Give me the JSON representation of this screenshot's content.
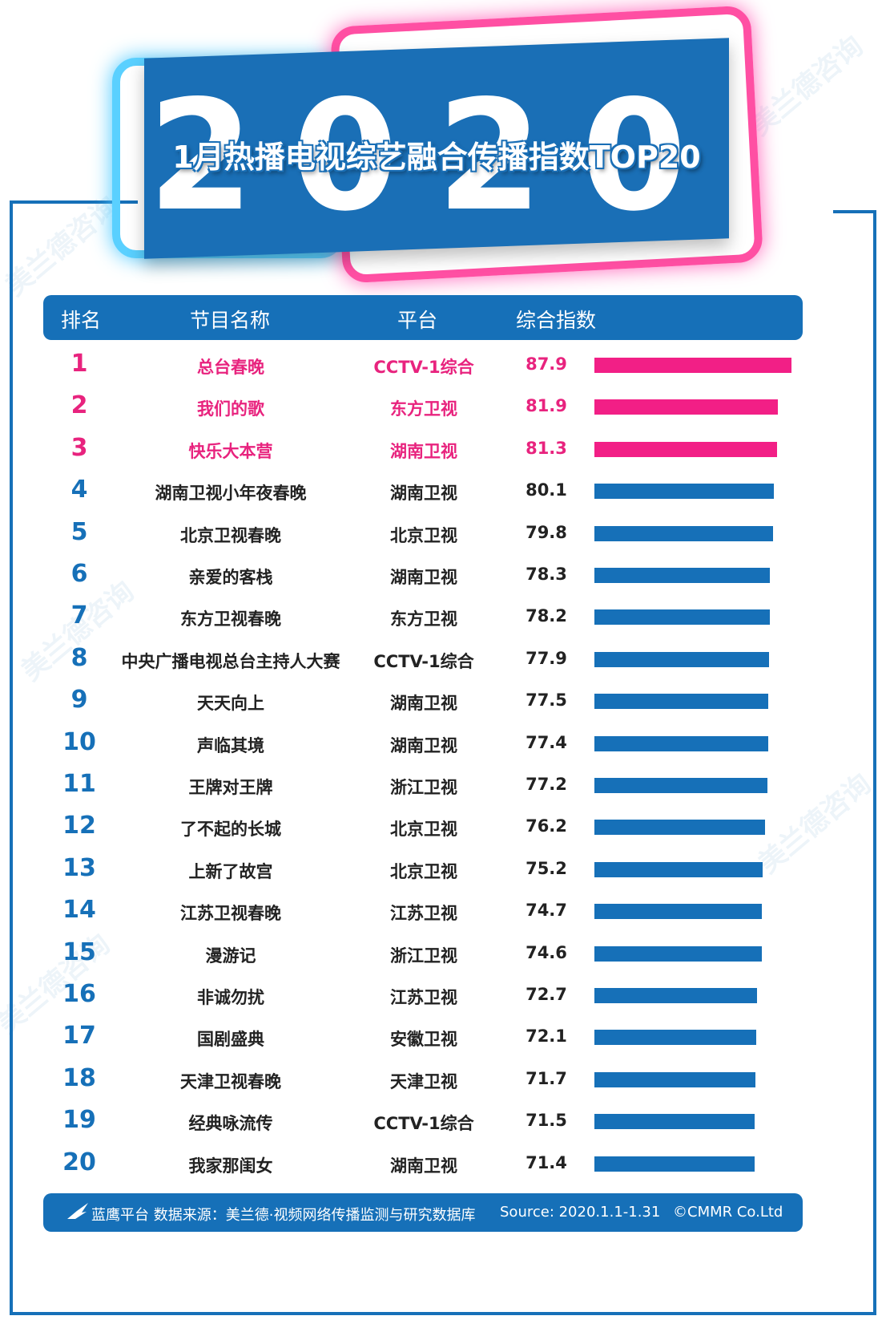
{
  "banner": {
    "year": "2020",
    "title": "1月热播电视综艺融合传播指数TOP20"
  },
  "header": {
    "rank": "排名",
    "name": "节目名称",
    "platform": "平台",
    "index": "综合指数"
  },
  "chart_data": {
    "type": "bar",
    "title": "1月热播电视综艺融合传播指数TOP20",
    "columns": [
      "排名",
      "节目名称",
      "平台",
      "综合指数"
    ],
    "xlim": [
      0,
      87.9
    ],
    "rows": [
      {
        "rank": "1",
        "name": "总台春晚",
        "platform": "CCTV-1综合",
        "value": 87.9
      },
      {
        "rank": "2",
        "name": "我们的歌",
        "platform": "东方卫视",
        "value": 81.9
      },
      {
        "rank": "3",
        "name": "快乐大本营",
        "platform": "湖南卫视",
        "value": 81.3
      },
      {
        "rank": "4",
        "name": "湖南卫视小年夜春晚",
        "platform": "湖南卫视",
        "value": 80.1
      },
      {
        "rank": "5",
        "name": "北京卫视春晚",
        "platform": "北京卫视",
        "value": 79.8
      },
      {
        "rank": "6",
        "name": "亲爱的客栈",
        "platform": "湖南卫视",
        "value": 78.3
      },
      {
        "rank": "7",
        "name": "东方卫视春晚",
        "platform": "东方卫视",
        "value": 78.2
      },
      {
        "rank": "8",
        "name": "中央广播电视总台主持人大赛",
        "platform": "CCTV-1综合",
        "value": 77.9
      },
      {
        "rank": "9",
        "name": "天天向上",
        "platform": "湖南卫视",
        "value": 77.5
      },
      {
        "rank": "10",
        "name": "声临其境",
        "platform": "湖南卫视",
        "value": 77.4
      },
      {
        "rank": "11",
        "name": "王牌对王牌",
        "platform": "浙江卫视",
        "value": 77.2
      },
      {
        "rank": "12",
        "name": "了不起的长城",
        "platform": "北京卫视",
        "value": 76.2
      },
      {
        "rank": "13",
        "name": "上新了故宫",
        "platform": "北京卫视",
        "value": 75.2
      },
      {
        "rank": "14",
        "name": "江苏卫视春晚",
        "platform": "江苏卫视",
        "value": 74.7
      },
      {
        "rank": "15",
        "name": "漫游记",
        "platform": "浙江卫视",
        "value": 74.6
      },
      {
        "rank": "16",
        "name": "非诚勿扰",
        "platform": "江苏卫视",
        "value": 72.7
      },
      {
        "rank": "17",
        "name": "国剧盛典",
        "platform": "安徽卫视",
        "value": 72.1
      },
      {
        "rank": "18",
        "name": "天津卫视春晚",
        "platform": "天津卫视",
        "value": 71.7
      },
      {
        "rank": "19",
        "name": "经典咏流传",
        "platform": "CCTV-1综合",
        "value": 71.5
      },
      {
        "rank": "20",
        "name": "我家那闺女",
        "platform": "湖南卫视",
        "value": 71.4
      }
    ],
    "highlight_top": 3,
    "colors": {
      "highlight": "#f21f86",
      "normal": "#1670b8"
    }
  },
  "footer": {
    "source_cn": "蓝鹰平台 数据来源：美兰德·视频网络传播监测与研究数据库",
    "source_en": "Source:  2020.1.1-1.31",
    "copyright": "©CMMR Co.Ltd"
  },
  "watermark": "美兰德咨询",
  "icons": {
    "footer": "eagle-icon"
  }
}
